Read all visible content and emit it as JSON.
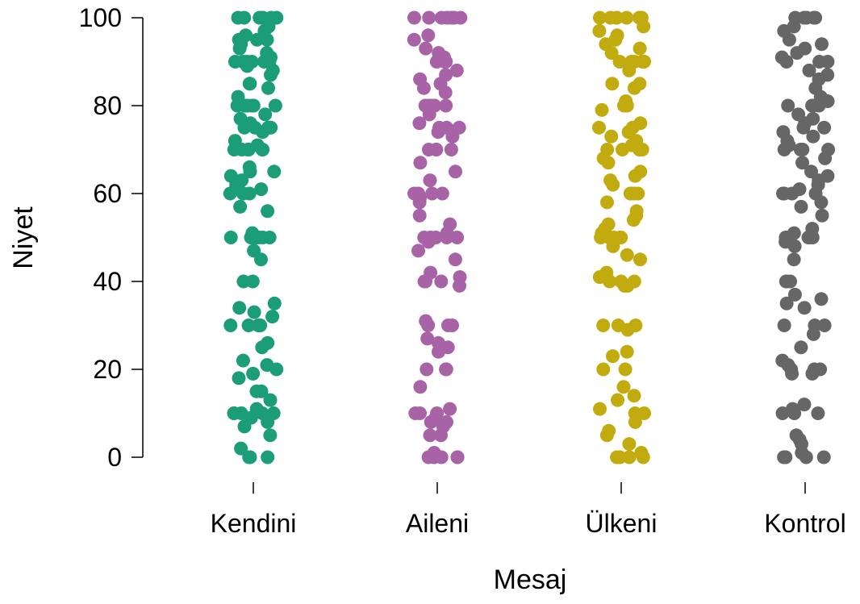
{
  "chart_data": {
    "type": "scatter",
    "subtype": "strip-jitter",
    "title": "",
    "xlabel": "Mesaj",
    "ylabel": "Niyet",
    "ylim": [
      0,
      100
    ],
    "yticks": [
      0,
      20,
      40,
      60,
      80,
      100
    ],
    "grid": false,
    "legend": "none",
    "categories": [
      "Kendini",
      "Aileni",
      "Ülkeni",
      "Kontrol"
    ],
    "colors": [
      "#1b9e77",
      "#a763a6",
      "#c2ab0e",
      "#666666"
    ],
    "series": [
      {
        "category": "Kendini",
        "values": [
          100,
          100,
          100,
          100,
          100,
          100,
          100,
          100,
          100,
          98,
          97,
          96,
          95,
          95,
          95,
          94,
          93,
          92,
          91,
          90,
          90,
          90,
          90,
          90,
          90,
          89,
          88,
          87,
          85,
          85,
          84,
          82,
          80,
          80,
          80,
          80,
          80,
          80,
          78,
          77,
          76,
          75,
          75,
          75,
          75,
          75,
          74,
          72,
          71,
          70,
          70,
          70,
          70,
          70,
          70,
          70,
          66,
          65,
          65,
          64,
          63,
          62,
          61,
          60,
          60,
          60,
          60,
          57,
          56,
          51,
          50,
          50,
          50,
          50,
          50,
          50,
          50,
          47,
          45,
          40,
          40,
          35,
          34,
          33,
          32,
          30,
          30,
          30,
          30,
          30,
          26,
          25,
          22,
          21,
          20,
          19,
          18,
          15,
          15,
          13,
          11,
          10,
          10,
          10,
          10,
          10,
          9,
          8,
          7,
          5,
          2,
          0,
          0,
          0
        ]
      },
      {
        "category": "Aileni",
        "values": [
          100,
          100,
          100,
          100,
          100,
          100,
          100,
          100,
          96,
          95,
          93,
          92,
          91,
          90,
          90,
          90,
          90,
          88,
          87,
          86,
          85,
          84,
          83,
          80,
          80,
          80,
          80,
          80,
          80,
          78,
          76,
          75,
          75,
          75,
          74,
          73,
          70,
          70,
          70,
          70,
          67,
          65,
          63,
          60,
          60,
          60,
          60,
          59,
          58,
          55,
          53,
          51,
          50,
          50,
          50,
          50,
          50,
          49,
          47,
          45,
          42,
          41,
          40,
          40,
          40,
          39,
          31,
          30,
          30,
          30,
          27,
          26,
          25,
          24,
          20,
          20,
          20,
          16,
          11,
          10,
          10,
          10,
          9,
          8,
          8,
          7,
          5,
          5,
          1,
          0,
          0,
          0,
          0,
          0
        ]
      },
      {
        "category": "Ülkeni",
        "values": [
          100,
          100,
          100,
          100,
          100,
          100,
          100,
          100,
          98,
          97,
          96,
          95,
          94,
          93,
          92,
          90,
          90,
          90,
          90,
          90,
          88,
          85,
          85,
          84,
          81,
          80,
          80,
          79,
          76,
          75,
          75,
          74,
          73,
          72,
          71,
          70,
          70,
          70,
          70,
          68,
          67,
          65,
          64,
          63,
          62,
          60,
          60,
          60,
          60,
          58,
          56,
          55,
          54,
          53,
          52,
          51,
          50,
          50,
          50,
          50,
          50,
          48,
          46,
          45,
          42,
          41,
          40,
          40,
          40,
          39,
          39,
          30,
          30,
          30,
          29,
          24,
          23,
          20,
          20,
          16,
          14,
          13,
          11,
          10,
          10,
          8,
          6,
          5,
          3,
          1,
          0,
          0,
          0,
          0
        ]
      },
      {
        "category": "Kontrol",
        "values": [
          100,
          100,
          100,
          100,
          100,
          100,
          100,
          98,
          97,
          95,
          94,
          93,
          92,
          91,
          90,
          90,
          90,
          88,
          87,
          86,
          84,
          82,
          81,
          80,
          80,
          80,
          80,
          78,
          77,
          76,
          75,
          75,
          74,
          73,
          72,
          71,
          70,
          70,
          70,
          70,
          68,
          67,
          65,
          64,
          63,
          62,
          61,
          60,
          60,
          60,
          60,
          58,
          57,
          55,
          52,
          51,
          50,
          50,
          50,
          50,
          50,
          49,
          48,
          45,
          40,
          40,
          40,
          37,
          36,
          35,
          34,
          30,
          30,
          30,
          28,
          25,
          22,
          21,
          20,
          20,
          20,
          19,
          19,
          12,
          11,
          10,
          10,
          10,
          5,
          4,
          3,
          1,
          0,
          0,
          0,
          0,
          0
        ]
      }
    ]
  }
}
